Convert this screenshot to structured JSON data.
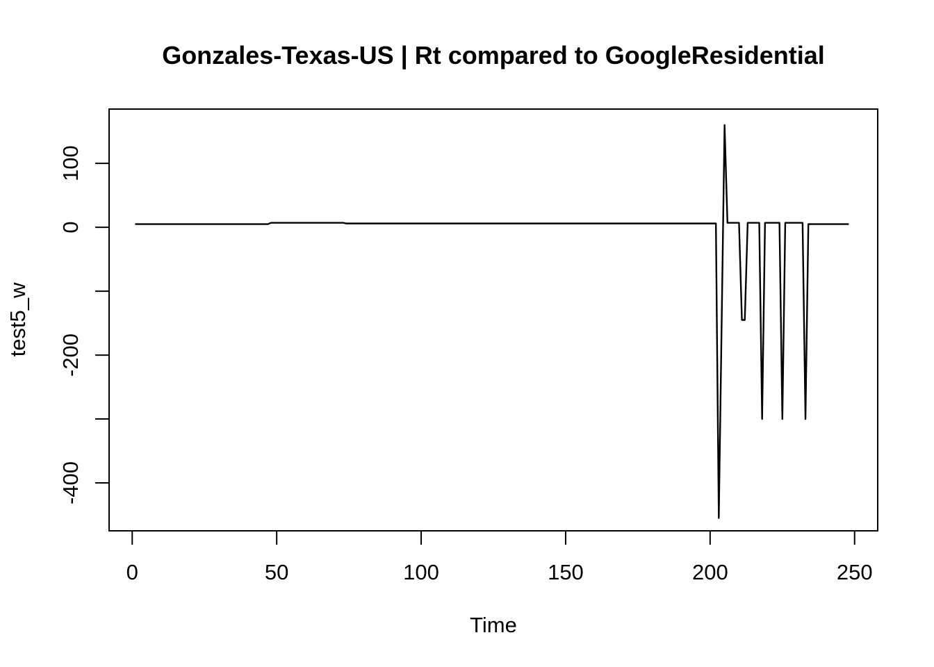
{
  "chart_data": {
    "type": "line",
    "title": "Gonzales-Texas-US | Rt compared to GoogleResidential",
    "xlabel": "Time",
    "ylabel": "test5_w",
    "xlim": [
      -8,
      258
    ],
    "ylim": [
      -475,
      185
    ],
    "x_ticks": [
      0,
      50,
      100,
      150,
      200,
      250
    ],
    "x_tick_labels": [
      "0",
      "50",
      "100",
      "150",
      "200",
      "250"
    ],
    "y_ticks": [
      -400,
      -300,
      -200,
      -100,
      0,
      100
    ],
    "y_tick_labels": [
      "-400",
      "",
      "-200",
      "",
      "0",
      "100"
    ],
    "grid": false,
    "legend": "none",
    "line_color": "#000000",
    "series": [
      {
        "x": [
          1,
          47,
          48,
          73,
          74,
          202,
          203,
          205,
          206,
          210,
          211,
          212,
          213,
          217,
          218,
          219,
          220,
          224,
          225,
          226,
          227,
          232,
          233,
          234,
          248
        ],
        "y": [
          5,
          5,
          7,
          7,
          6,
          6,
          -455,
          160,
          7,
          7,
          -145,
          -145,
          7,
          7,
          -300,
          7,
          7,
          7,
          -300,
          7,
          7,
          7,
          -300,
          5,
          5
        ]
      }
    ]
  }
}
